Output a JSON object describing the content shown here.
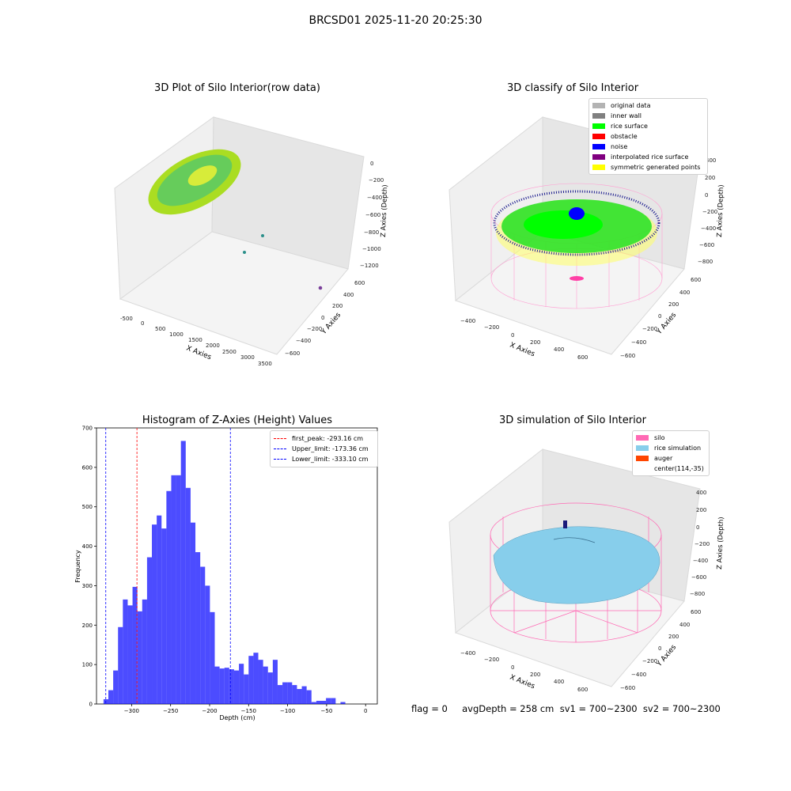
{
  "suptitle": "BRCSD01 2025-11-20 20:25:30",
  "panels": {
    "raw": {
      "title": "3D Plot of Silo Interior(row data)",
      "xlabel": "X Axies",
      "ylabel": "Y Axies",
      "zlabel": "Z Axies (Depth)",
      "xticks": [
        "-500",
        "0",
        "500",
        "1000",
        "1500",
        "2000",
        "2500",
        "3000",
        "3500"
      ],
      "yticks": [
        "600",
        "400",
        "200",
        "0",
        "−200",
        "−400",
        "−600"
      ],
      "zticks": [
        "0",
        "−200",
        "−400",
        "−600",
        "−800",
        "−1000",
        "−1200"
      ]
    },
    "classify": {
      "title": "3D classify of Silo Interior",
      "xlabel": "X Axies",
      "ylabel": "Y Axies",
      "zlabel": "Z Axies (Depth)",
      "xticks": [
        "−400",
        "−200",
        "0",
        "200",
        "400",
        "600"
      ],
      "yticks": [
        "600",
        "400",
        "200",
        "0",
        "−200",
        "−400",
        "−600"
      ],
      "zticks": [
        "400",
        "200",
        "0",
        "−200",
        "−400",
        "−600",
        "−800"
      ],
      "legend": [
        {
          "label": "original data",
          "color": "#b3b3b3"
        },
        {
          "label": "inner wall",
          "color": "#808080"
        },
        {
          "label": "rice surface",
          "color": "#00ff00"
        },
        {
          "label": "obstacle",
          "color": "#ff0000"
        },
        {
          "label": "noise",
          "color": "#0000ff"
        },
        {
          "label": "interpolated rice surface",
          "color": "#800080"
        },
        {
          "label": "symmetric generated points",
          "color": "#ffff00"
        }
      ]
    },
    "simulation": {
      "title": "3D simulation of Silo Interior",
      "xlabel": "X Axies",
      "ylabel": "Y Axies",
      "zlabel": "Z Axies (Depth)",
      "xticks": [
        "−400",
        "−200",
        "0",
        "200",
        "400",
        "600"
      ],
      "yticks": [
        "600",
        "400",
        "200",
        "0",
        "−200",
        "−400",
        "−600"
      ],
      "zticks": [
        "400",
        "200",
        "0",
        "−200",
        "−400",
        "−600",
        "−800"
      ],
      "legend": [
        {
          "label": "silo",
          "color": "#ff69b4"
        },
        {
          "label": "rice simulation",
          "color": "#87ceeb"
        },
        {
          "label": "auger",
          "color": "#ff4500"
        },
        {
          "label": "center(114,-35)",
          "color": ""
        }
      ]
    }
  },
  "footer": "flag = 0     avgDepth = 258 cm  sv1 = 700~2300  sv2 = 700~2300",
  "chart_data": {
    "type": "bar",
    "title": "Histogram of Z-Axies (Height) Values",
    "xlabel": "Depth (cm)",
    "ylabel": "Frequency",
    "xlim": [
      -345,
      15
    ],
    "ylim": [
      0,
      700
    ],
    "xticks": [
      -300,
      -250,
      -200,
      -150,
      -100,
      -50,
      0
    ],
    "yticks": [
      0,
      100,
      200,
      300,
      400,
      500,
      600,
      700
    ],
    "bin_start": -336,
    "bin_width": 6.2,
    "values": [
      12,
      35,
      85,
      195,
      265,
      250,
      297,
      235,
      265,
      372,
      455,
      478,
      445,
      540,
      580,
      580,
      667,
      548,
      460,
      385,
      348,
      300,
      233,
      95,
      90,
      92,
      88,
      85,
      102,
      75,
      122,
      130,
      112,
      95,
      80,
      112,
      48,
      55,
      55,
      48,
      38,
      45,
      35,
      5,
      8,
      8,
      15,
      15,
      0,
      5
    ],
    "lines": [
      {
        "label": "first_peak: -293.16 cm",
        "x": -293.16,
        "color": "#ff0000"
      },
      {
        "label": "Upper_limit: -173.36 cm",
        "x": -173.36,
        "color": "#0000ff"
      },
      {
        "label": "Lower_limit: -333.10 cm",
        "x": -333.1,
        "color": "#0000ff"
      }
    ],
    "bar_color": "#0000ff"
  }
}
